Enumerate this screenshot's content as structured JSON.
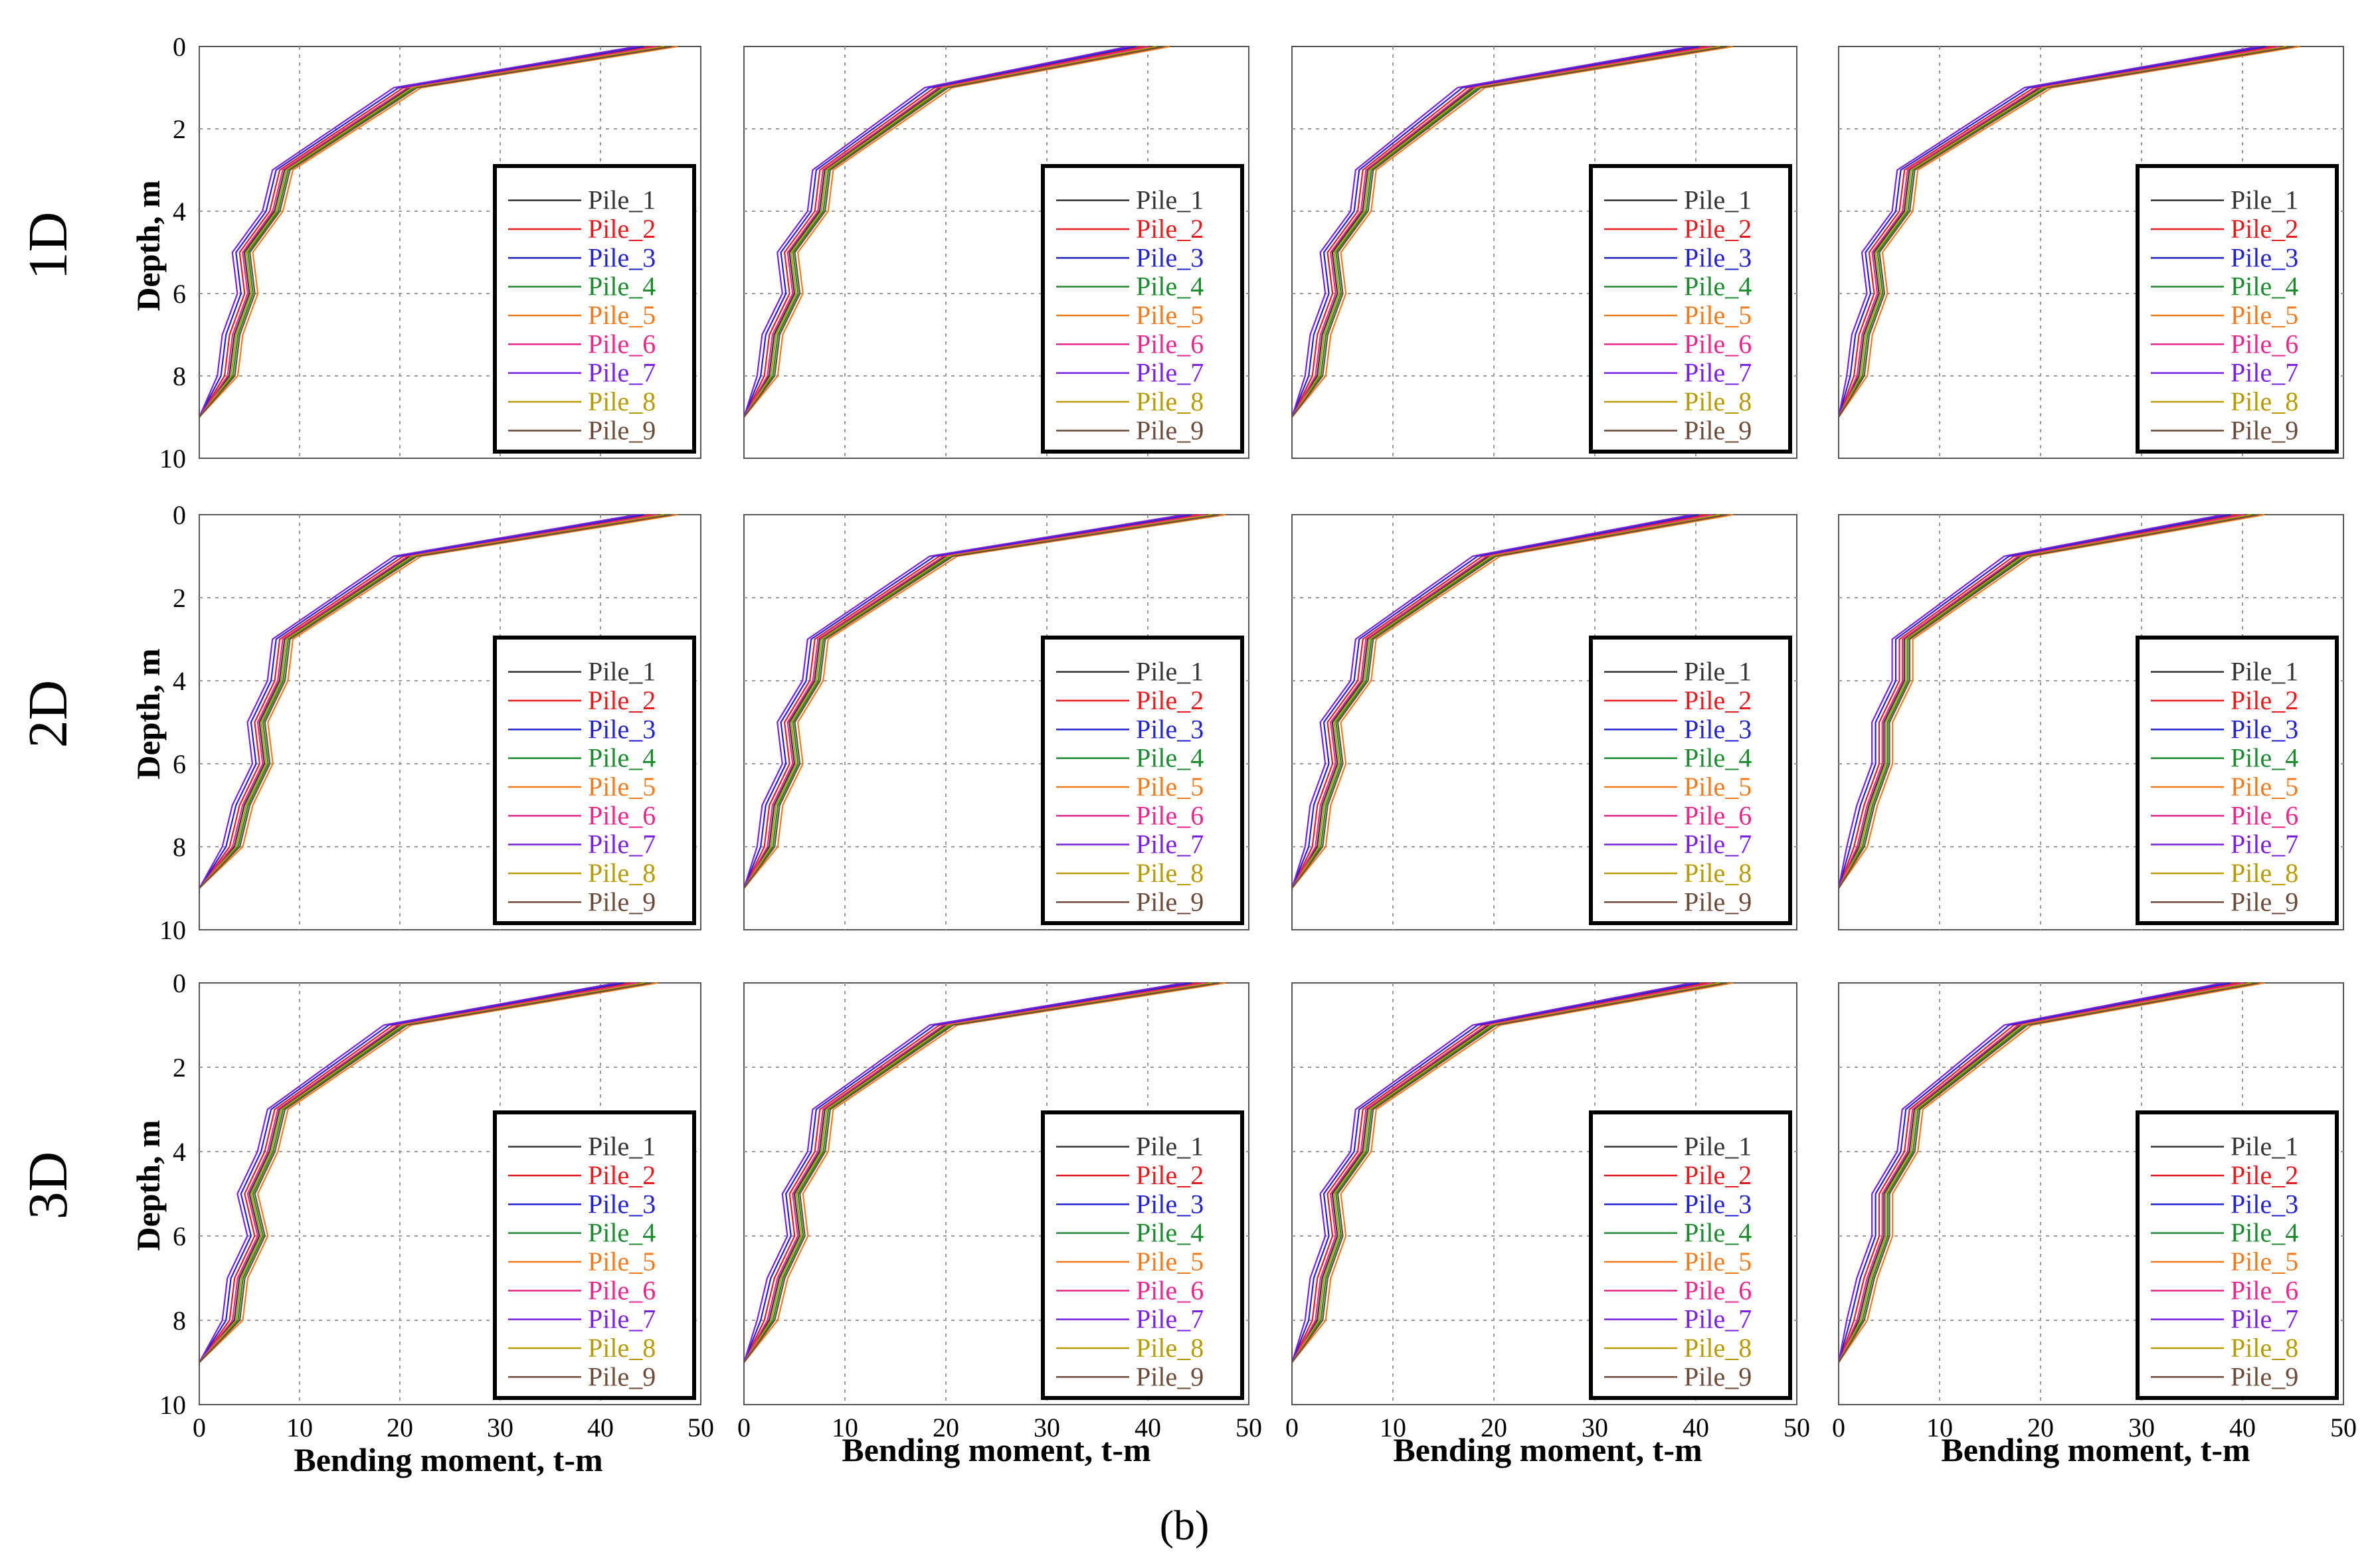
{
  "figure_caption": "(b)",
  "colors": {
    "Pile_1": "#333333",
    "Pile_2": "#e41a1c",
    "Pile_3": "#2222cc",
    "Pile_4": "#1b8a2e",
    "Pile_5": "#f07b1e",
    "Pile_6": "#e8268c",
    "Pile_7": "#7b1fe0",
    "Pile_8": "#b59a00",
    "Pile_9": "#6b4a3a",
    "grid": "#9a9a9a",
    "frame": "#555555"
  },
  "chart_data": {
    "type": "line",
    "layout": "grid 3x4",
    "row_labels": [
      "1D",
      "2D",
      "3D"
    ],
    "ylabel": "Depth, m",
    "xlabel": "Bending moment, t-m",
    "x_ticks": [
      "0",
      "10",
      "20",
      "30",
      "40",
      "50"
    ],
    "y_ticks": [
      "0",
      "2",
      "4",
      "6",
      "8",
      "10"
    ],
    "xlim": [
      0,
      50
    ],
    "ylim": [
      0,
      10
    ],
    "y_inverted": true,
    "depths": [
      0,
      1,
      3,
      4,
      5,
      6,
      7,
      8,
      9
    ],
    "legend": [
      "Pile_1",
      "Pile_2",
      "Pile_3",
      "Pile_4",
      "Pile_5",
      "Pile_6",
      "Pile_7",
      "Pile_8",
      "Pile_9"
    ],
    "base_profiles": [
      [
        [
          46,
          21,
          8.5,
          7.5,
          4.5,
          5.0,
          3.5,
          3.0,
          0
        ],
        [
          40.5,
          19.5,
          8.0,
          7.5,
          4.5,
          5.0,
          3.0,
          2.5,
          0
        ],
        [
          42,
          18,
          7.5,
          7.0,
          4.0,
          4.5,
          3.0,
          2.5,
          0
        ],
        [
          44,
          20,
          7.0,
          6.5,
          3.5,
          4.0,
          2.5,
          2.0,
          0
        ]
      ],
      [
        [
          46,
          21,
          8.5,
          8.0,
          6.0,
          6.5,
          4.5,
          3.5,
          0
        ],
        [
          46,
          20,
          7.5,
          7.0,
          4.5,
          5.0,
          3.0,
          2.5,
          0
        ],
        [
          42,
          19.5,
          7.5,
          7.0,
          4.0,
          4.5,
          3.0,
          2.5,
          0
        ],
        [
          40.5,
          18,
          6.5,
          6.5,
          4.5,
          4.5,
          3.0,
          2.0,
          0
        ]
      ],
      [
        [
          44,
          20,
          8.0,
          7.0,
          5.0,
          6.0,
          4.0,
          3.5,
          0
        ],
        [
          46,
          20,
          8.0,
          7.5,
          5.0,
          5.5,
          3.5,
          2.5,
          0
        ],
        [
          42,
          19.5,
          7.5,
          7.0,
          4.0,
          4.5,
          3.0,
          2.5,
          0
        ],
        [
          40.5,
          18,
          7.5,
          7.0,
          4.5,
          4.5,
          3.0,
          2.0,
          0
        ]
      ]
    ],
    "pile_offsets": [
      0,
      -0.8,
      -1.4,
      0.6,
      1.4,
      -0.3,
      -2.0,
      0.3,
      0.9
    ]
  }
}
